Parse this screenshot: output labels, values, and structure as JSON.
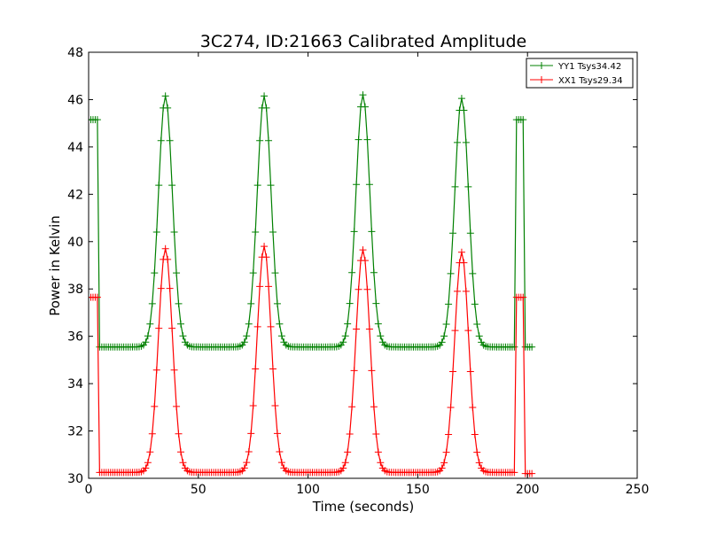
{
  "chart_data": {
    "type": "line",
    "title": "3C274, ID:21663 Calibrated Amplitude",
    "xlabel": "Time (seconds)",
    "ylabel": "Power in Kelvin",
    "xlim": [
      0,
      250
    ],
    "ylim": [
      30,
      48
    ],
    "xticks": [
      0,
      50,
      100,
      150,
      200,
      250
    ],
    "yticks": [
      30,
      32,
      34,
      36,
      38,
      40,
      42,
      44,
      46,
      48
    ],
    "grid": false,
    "legend_position": "top-right",
    "marker": "+",
    "series": [
      {
        "name": "YY1 Tsys34.42",
        "color": "#008000",
        "baseline": 35.55,
        "peaks": [
          {
            "center": 35,
            "height": 46.15
          },
          {
            "center": 80,
            "height": 46.15
          },
          {
            "center": 125,
            "height": 46.2
          },
          {
            "center": 170,
            "height": 46.05
          }
        ],
        "segments": [
          {
            "x_start": 0,
            "x_end": 4,
            "value": 45.15
          },
          {
            "x_start": 195,
            "x_end": 198,
            "value": 45.15
          },
          {
            "x_start": 199,
            "x_end": 202,
            "value": 35.55
          }
        ],
        "x_range": [
          0,
          202
        ]
      },
      {
        "name": "XX1 Tsys29.34",
        "color": "#ff0000",
        "baseline": 30.25,
        "peaks": [
          {
            "center": 35,
            "height": 39.7
          },
          {
            "center": 80,
            "height": 39.8
          },
          {
            "center": 125,
            "height": 39.65
          },
          {
            "center": 170,
            "height": 39.55
          }
        ],
        "segments": [
          {
            "x_start": 0,
            "x_end": 4,
            "value": 37.65
          },
          {
            "x_start": 195,
            "x_end": 198,
            "value": 37.65
          },
          {
            "x_start": 199,
            "x_end": 202,
            "value": 30.2
          }
        ],
        "x_range": [
          0,
          202
        ]
      }
    ]
  }
}
